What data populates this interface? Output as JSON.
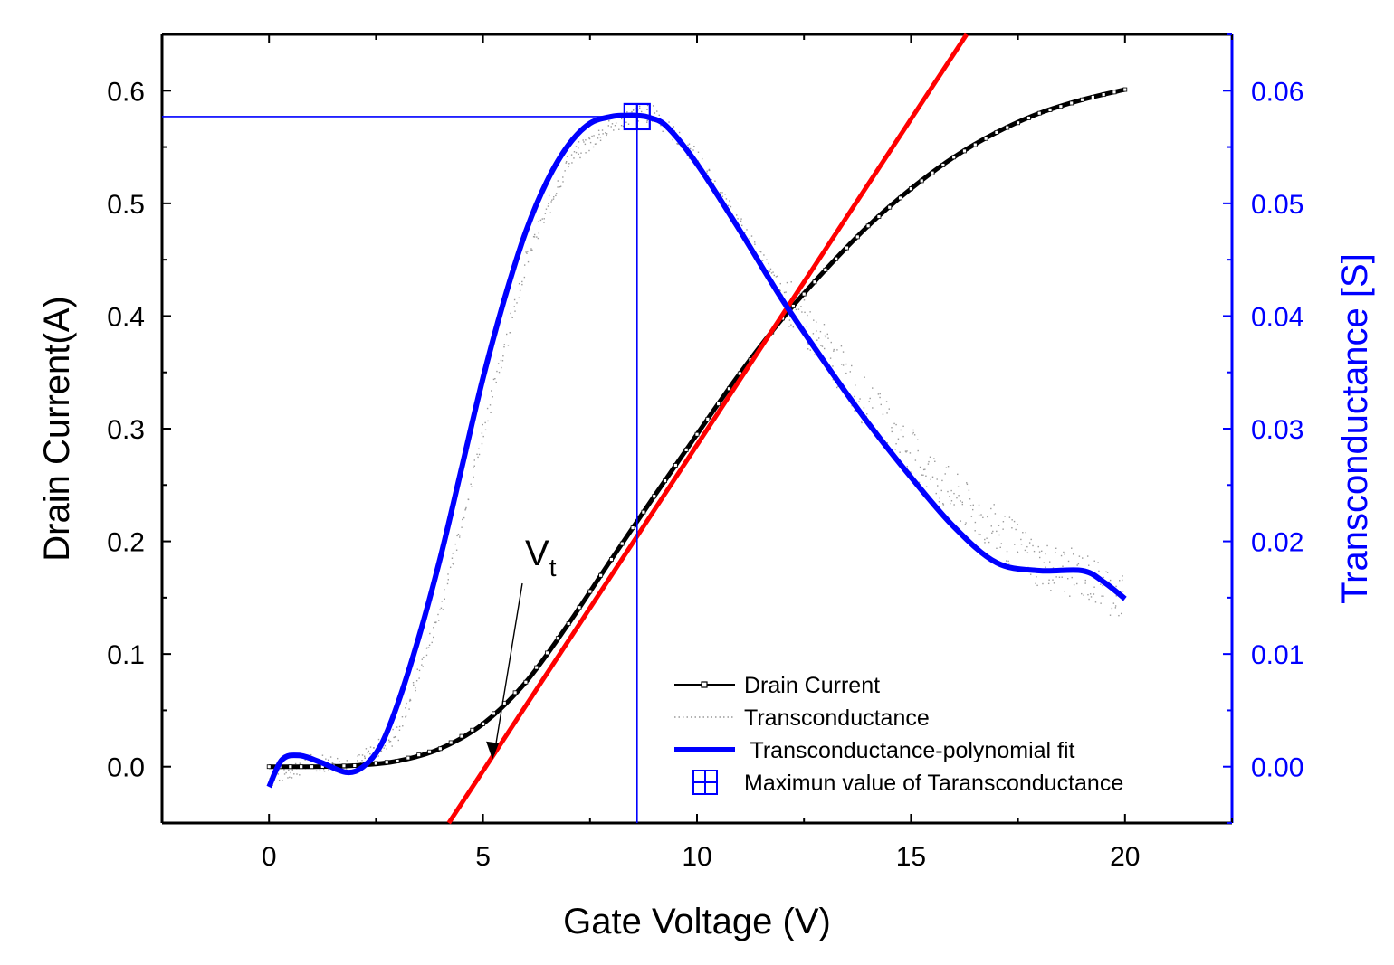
{
  "chart_data": {
    "type": "line",
    "xlabel": "Gate Voltage (V)",
    "ylabel_left": "Drain Current(A)",
    "ylabel_right": "Transconductance [S]",
    "xlim": [
      -2.5,
      22.5
    ],
    "ylim_left": [
      -0.05,
      0.65
    ],
    "ylim_right": [
      -0.005,
      0.065
    ],
    "x_ticks": [
      "0",
      "5",
      "10",
      "15",
      "20"
    ],
    "y_left_ticks": [
      "0.0",
      "0.1",
      "0.2",
      "0.3",
      "0.4",
      "0.5",
      "0.6"
    ],
    "y_right_ticks": [
      "0.00",
      "0.01",
      "0.02",
      "0.03",
      "0.04",
      "0.05",
      "0.06"
    ],
    "colors": {
      "drain_current": "#000000",
      "transconductance": "#9a9a9a",
      "polyfit": "#0000ff",
      "tangent": "#ff0000",
      "right_axis": "#0000ff"
    },
    "series": [
      {
        "name": "Drain Current",
        "axis": "left",
        "x": [
          0,
          1,
          2,
          3,
          4,
          5,
          6,
          7,
          8,
          9,
          10,
          11,
          12,
          13,
          14,
          15,
          16,
          17,
          18,
          19,
          20
        ],
        "values": [
          0,
          0,
          0.001,
          0.005,
          0.016,
          0.038,
          0.075,
          0.127,
          0.184,
          0.24,
          0.295,
          0.349,
          0.398,
          0.441,
          0.48,
          0.513,
          0.541,
          0.563,
          0.58,
          0.592,
          0.601
        ]
      },
      {
        "name": "Transconductance",
        "axis": "right",
        "x": [
          0,
          1,
          2,
          3,
          4,
          5,
          6,
          7,
          8,
          8.6,
          9,
          10,
          11,
          12,
          13,
          14,
          15,
          16,
          17,
          18,
          19,
          20
        ],
        "values": [
          -0.001,
          0.0005,
          0.0002,
          0.003,
          0.014,
          0.03,
          0.045,
          0.054,
          0.057,
          0.058,
          0.058,
          0.054,
          0.048,
          0.042,
          0.037,
          0.032,
          0.028,
          0.024,
          0.021,
          0.018,
          0.017,
          0.015
        ]
      },
      {
        "name": "Transconductance-polynomial fit",
        "axis": "right",
        "x": [
          0,
          0.3,
          0.7,
          1.2,
          1.8,
          2.2,
          2.6,
          3.0,
          3.5,
          4.0,
          4.5,
          5.0,
          5.5,
          6.0,
          6.5,
          7.0,
          7.5,
          8.0,
          8.3,
          8.6,
          8.9,
          9.3,
          10.0,
          11.0,
          12.0,
          13.0,
          14.0,
          15.0,
          16.0,
          17.0,
          18.0,
          19.0,
          19.5,
          20.0
        ],
        "values": [
          -0.0018,
          0.0006,
          0.001,
          0.0004,
          -0.0005,
          0.0,
          0.0018,
          0.0055,
          0.0115,
          0.0185,
          0.0265,
          0.0345,
          0.0415,
          0.0475,
          0.052,
          0.0552,
          0.0571,
          0.0577,
          0.0578,
          0.0578,
          0.0576,
          0.0568,
          0.0535,
          0.0476,
          0.0414,
          0.0358,
          0.0305,
          0.0257,
          0.0213,
          0.0181,
          0.0174,
          0.0174,
          0.0164,
          0.0149
        ]
      },
      {
        "name": "Maximun value of Taransconductance",
        "axis": "right",
        "x": [
          8.6
        ],
        "values": [
          0.0577
        ]
      },
      {
        "name": "tangent line",
        "axis": "left",
        "x": [
          4.2,
          16.3
        ],
        "values": [
          -0.05,
          0.65
        ]
      }
    ],
    "max_point": {
      "x": 8.6,
      "y": 0.0577
    },
    "annotation": {
      "label": "V",
      "subscript": "t",
      "x": 5.2,
      "y": 0.0
    },
    "legend": {
      "position": "bottom-right",
      "entries": [
        "Drain Current",
        "Transconductance",
        " Transconductance-polynomial fit",
        "Maximun value of Taransconductance"
      ]
    }
  }
}
